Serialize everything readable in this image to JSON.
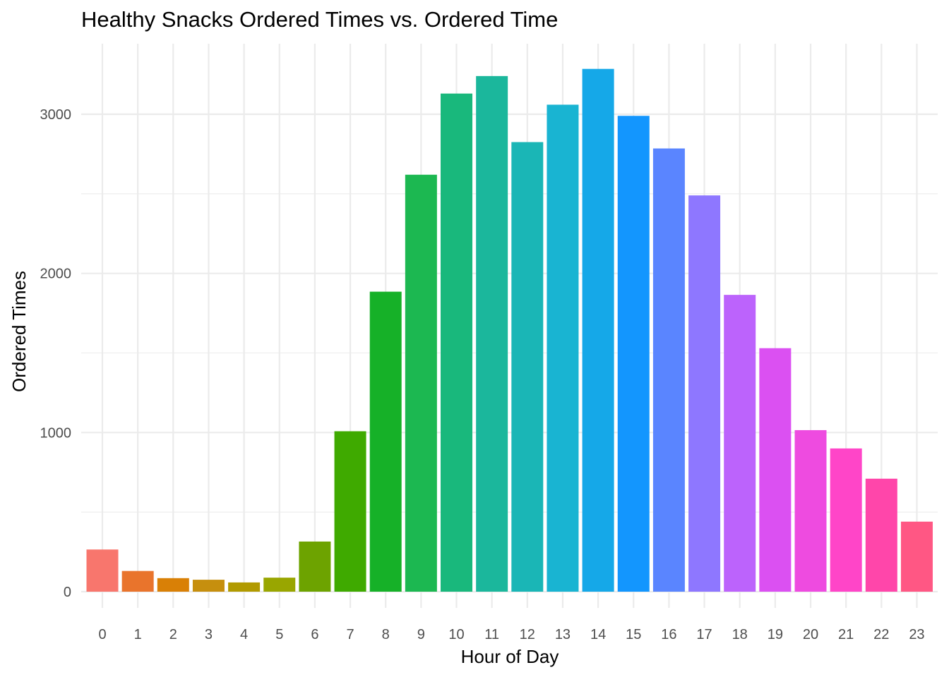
{
  "chart_data": {
    "type": "bar",
    "title": "Healthy Snacks Ordered Times vs. Ordered Time",
    "xlabel": "Hour of Day",
    "ylabel": "Ordered Times",
    "categories": [
      "0",
      "1",
      "2",
      "3",
      "4",
      "5",
      "6",
      "7",
      "8",
      "9",
      "10",
      "11",
      "12",
      "13",
      "14",
      "15",
      "16",
      "17",
      "18",
      "19",
      "20",
      "21",
      "22",
      "23"
    ],
    "values": [
      265,
      130,
      85,
      75,
      58,
      88,
      315,
      1008,
      1885,
      2620,
      3130,
      3240,
      2825,
      3060,
      3285,
      2990,
      2785,
      2490,
      1865,
      1530,
      1015,
      900,
      710,
      440
    ],
    "colors": [
      "#F8766D",
      "#EA8331",
      "#D89000",
      "#C09B00",
      "#A3A500",
      "#7CAE00",
      "#39B600",
      "#00BB4E",
      "#00BF7D",
      "#00C1A3",
      "#00BFC4",
      "#00BAE0",
      "#00B0F6",
      "#35A2FF",
      "#9590FF",
      "#C77CFF",
      "#E76BF3",
      "#FA62DB",
      "#FF62BC",
      "#FF6A98"
    ],
    "bar_colors": [
      "#F8766D",
      "#E9742C",
      "#D98006",
      "#C68F0E",
      "#B19A00",
      "#99A600",
      "#6DA300",
      "#3FAA00",
      "#16B128",
      "#1CB851",
      "#19B87C",
      "#1BB79C",
      "#1AB6B6",
      "#19B4D2",
      "#15A8E8",
      "#1396FE",
      "#5A85FF",
      "#8E77FF",
      "#BC63FC",
      "#DB50F2",
      "#EE4BE0",
      "#FF45C8",
      "#FF46AA",
      "#FF5784"
    ],
    "yticks": [
      0,
      1000,
      2000,
      3000
    ],
    "ylim": [
      -130,
      3400
    ],
    "grid": true,
    "legend": "none"
  }
}
